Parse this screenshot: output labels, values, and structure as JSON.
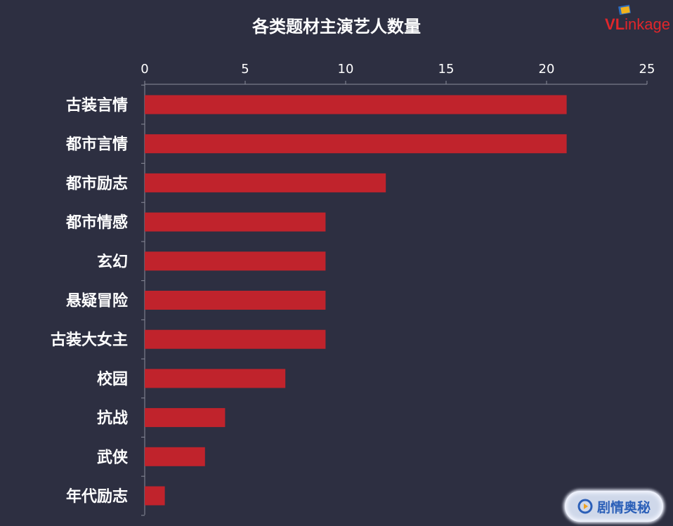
{
  "chart_data": {
    "type": "bar",
    "orientation": "horizontal",
    "title": "各类题材主演艺人数量",
    "categories": [
      "古装言情",
      "都市言情",
      "都市励志",
      "都市情感",
      "玄幻",
      "悬疑冒险",
      "古装大女主",
      "校园",
      "抗战",
      "武侠",
      "年代励志"
    ],
    "values": [
      21,
      21,
      12,
      9,
      9,
      9,
      9,
      7,
      4,
      3,
      1
    ],
    "xlim": [
      0,
      25
    ],
    "xticks": [
      0,
      5,
      10,
      15,
      20,
      25
    ],
    "x_axis_position": "top",
    "grid": false,
    "bar_color": "#c0232c"
  },
  "watermark": {
    "logo_v": "VL",
    "logo_rest": "inkage",
    "badge_text": "剧情奥秘"
  },
  "colors": {
    "background": "#2d2f41",
    "axis": "#8a8c9a",
    "text": "#ffffff"
  }
}
